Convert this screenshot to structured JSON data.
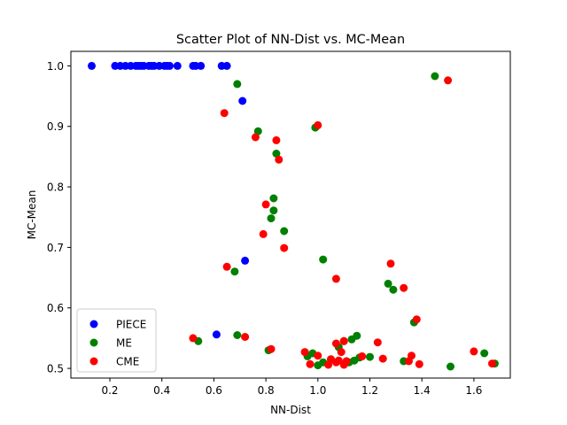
{
  "chart_data": {
    "type": "scatter",
    "title": "Scatter Plot of NN-Dist vs. MC-Mean",
    "xlabel": "NN-Dist",
    "ylabel": "MC-Mean",
    "xlim": [
      0.05,
      1.74
    ],
    "ylim": [
      0.484,
      1.024
    ],
    "xticks": [
      {
        "value": 0.2,
        "label": "0.2"
      },
      {
        "value": 0.4,
        "label": "0.4"
      },
      {
        "value": 0.6,
        "label": "0.6"
      },
      {
        "value": 0.8,
        "label": "0.8"
      },
      {
        "value": 1.0,
        "label": "1.0"
      },
      {
        "value": 1.2,
        "label": "1.2"
      },
      {
        "value": 1.4,
        "label": "1.4"
      },
      {
        "value": 1.6,
        "label": "1.6"
      }
    ],
    "yticks": [
      {
        "value": 0.5,
        "label": "0.5"
      },
      {
        "value": 0.6,
        "label": "0.6"
      },
      {
        "value": 0.7,
        "label": "0.7"
      },
      {
        "value": 0.8,
        "label": "0.8"
      },
      {
        "value": 0.9,
        "label": "0.9"
      },
      {
        "value": 1.0,
        "label": "1.0"
      }
    ],
    "grid": false,
    "legend_position": "lower-left",
    "series": [
      {
        "name": "PIECE",
        "color": "#0000ff",
        "points": [
          [
            0.13,
            1.0
          ],
          [
            0.22,
            1.0
          ],
          [
            0.24,
            1.0
          ],
          [
            0.26,
            1.0
          ],
          [
            0.28,
            1.0
          ],
          [
            0.3,
            1.0
          ],
          [
            0.31,
            1.0
          ],
          [
            0.32,
            1.0
          ],
          [
            0.33,
            1.0
          ],
          [
            0.35,
            1.0
          ],
          [
            0.36,
            1.0
          ],
          [
            0.37,
            1.0
          ],
          [
            0.39,
            1.0
          ],
          [
            0.41,
            1.0
          ],
          [
            0.42,
            1.0
          ],
          [
            0.43,
            1.0
          ],
          [
            0.46,
            1.0
          ],
          [
            0.52,
            1.0
          ],
          [
            0.53,
            1.0
          ],
          [
            0.55,
            1.0
          ],
          [
            0.63,
            1.0
          ],
          [
            0.65,
            1.0
          ],
          [
            0.71,
            0.942
          ],
          [
            0.72,
            0.678
          ],
          [
            0.61,
            0.556
          ]
        ]
      },
      {
        "name": "ME",
        "color": "#008000",
        "points": [
          [
            0.69,
            0.97
          ],
          [
            0.77,
            0.892
          ],
          [
            0.84,
            0.855
          ],
          [
            0.99,
            0.898
          ],
          [
            1.45,
            0.983
          ],
          [
            0.83,
            0.781
          ],
          [
            0.83,
            0.761
          ],
          [
            0.82,
            0.748
          ],
          [
            0.87,
            0.727
          ],
          [
            1.02,
            0.68
          ],
          [
            0.68,
            0.66
          ],
          [
            1.27,
            0.64
          ],
          [
            1.29,
            0.63
          ],
          [
            1.37,
            0.576
          ],
          [
            0.54,
            0.545
          ],
          [
            0.69,
            0.555
          ],
          [
            0.81,
            0.53
          ],
          [
            0.96,
            0.52
          ],
          [
            0.98,
            0.525
          ],
          [
            1.0,
            0.505
          ],
          [
            1.02,
            0.51
          ],
          [
            1.05,
            0.515
          ],
          [
            1.08,
            0.535
          ],
          [
            1.1,
            0.545
          ],
          [
            1.13,
            0.548
          ],
          [
            1.15,
            0.554
          ],
          [
            1.12,
            0.51
          ],
          [
            1.14,
            0.513
          ],
          [
            1.16,
            0.518
          ],
          [
            1.2,
            0.519
          ],
          [
            1.33,
            0.512
          ],
          [
            1.51,
            0.503
          ],
          [
            1.64,
            0.525
          ],
          [
            1.68,
            0.508
          ]
        ]
      },
      {
        "name": "CME",
        "color": "#ff0000",
        "points": [
          [
            0.64,
            0.922
          ],
          [
            0.76,
            0.882
          ],
          [
            0.84,
            0.877
          ],
          [
            0.85,
            0.845
          ],
          [
            1.0,
            0.902
          ],
          [
            1.5,
            0.976
          ],
          [
            0.8,
            0.771
          ],
          [
            0.79,
            0.722
          ],
          [
            0.87,
            0.699
          ],
          [
            0.65,
            0.668
          ],
          [
            1.07,
            0.648
          ],
          [
            1.28,
            0.673
          ],
          [
            1.33,
            0.633
          ],
          [
            1.38,
            0.581
          ],
          [
            0.52,
            0.55
          ],
          [
            0.72,
            0.552
          ],
          [
            0.82,
            0.532
          ],
          [
            0.95,
            0.527
          ],
          [
            0.97,
            0.507
          ],
          [
            1.0,
            0.521
          ],
          [
            1.04,
            0.506
          ],
          [
            1.05,
            0.515
          ],
          [
            1.07,
            0.51
          ],
          [
            1.07,
            0.541
          ],
          [
            1.08,
            0.513
          ],
          [
            1.09,
            0.527
          ],
          [
            1.1,
            0.506
          ],
          [
            1.11,
            0.512
          ],
          [
            1.1,
            0.545
          ],
          [
            1.17,
            0.52
          ],
          [
            1.23,
            0.543
          ],
          [
            1.25,
            0.516
          ],
          [
            1.35,
            0.512
          ],
          [
            1.36,
            0.521
          ],
          [
            1.39,
            0.507
          ],
          [
            1.6,
            0.528
          ],
          [
            1.67,
            0.508
          ]
        ]
      }
    ]
  }
}
